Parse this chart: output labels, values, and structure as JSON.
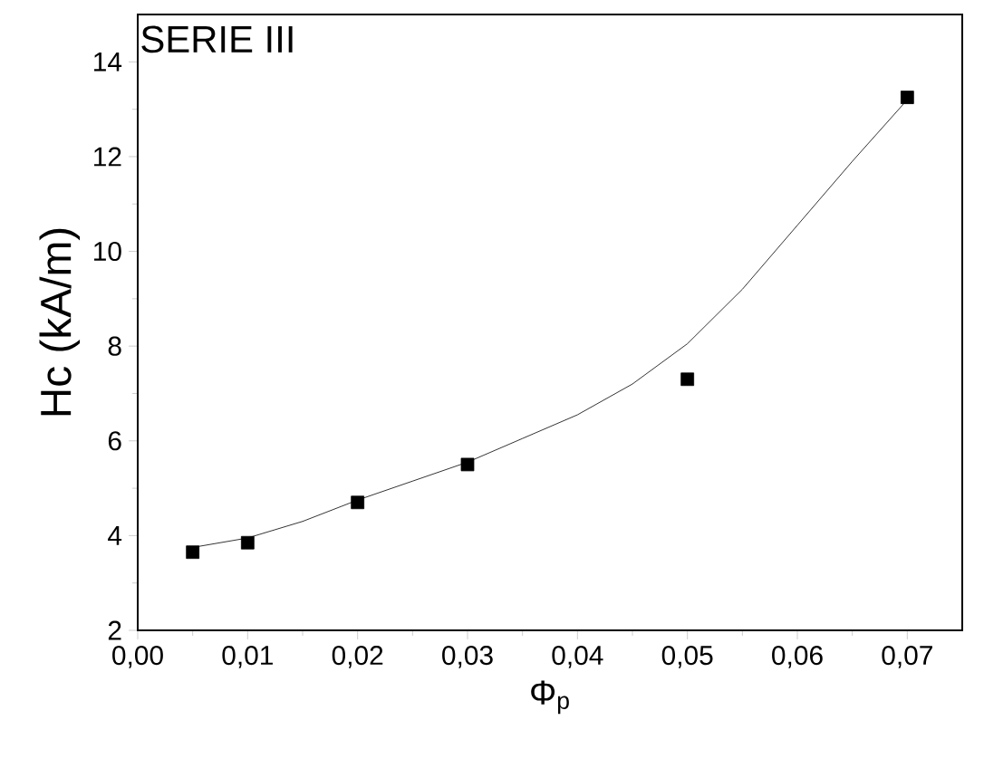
{
  "chart_data": {
    "type": "scatter",
    "xlabel": "Φ$_{p}$",
    "ylabel": "Hc  (kA/m)",
    "annotations": [
      "SERIE III"
    ],
    "xlim": [
      0,
      0.075
    ],
    "ylim": [
      2,
      15
    ],
    "xticks": [
      {
        "value": 0,
        "label": "0,00"
      },
      {
        "value": 0.01,
        "label": "0,01"
      },
      {
        "value": 0.02,
        "label": "0,02"
      },
      {
        "value": 0.03,
        "label": "0,03"
      },
      {
        "value": 0.04,
        "label": "0,04"
      },
      {
        "value": 0.05,
        "label": "0,05"
      },
      {
        "value": 0.06,
        "label": "0,06"
      },
      {
        "value": 0.07,
        "label": "0,07"
      }
    ],
    "yticks": [
      2,
      4,
      6,
      8,
      10,
      12,
      14
    ],
    "series": [
      {
        "marker": "square",
        "color": "#000000",
        "x": [
          0.005,
          0.01,
          0.02,
          0.03,
          0.05,
          0.07
        ],
        "values": [
          3.65,
          3.85,
          4.7,
          5.5,
          7.3,
          13.25
        ]
      },
      {
        "type": "line",
        "marker": "none",
        "line_style": "solid",
        "color": "#000000",
        "x": [
          0.005,
          0.01,
          0.015,
          0.02,
          0.025,
          0.03,
          0.035,
          0.04,
          0.045,
          0.05,
          0.055,
          0.06,
          0.065,
          0.07
        ],
        "values": [
          3.75,
          3.95,
          4.3,
          4.75,
          5.15,
          5.55,
          6.05,
          6.55,
          7.2,
          8.05,
          9.2,
          10.55,
          11.9,
          13.2
        ]
      }
    ]
  }
}
